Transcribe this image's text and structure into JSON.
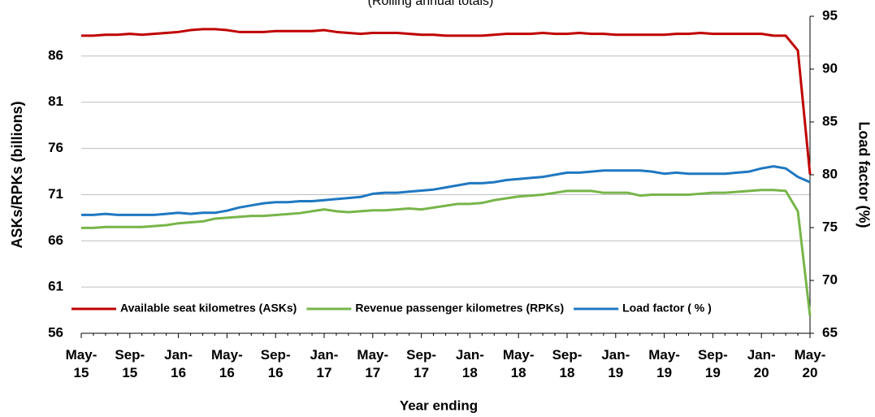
{
  "chart_data": {
    "type": "line",
    "title": "(Rolling annual totals)",
    "x_label": "Year ending",
    "y_label": "ASKs/RPKs (billions)",
    "y2_label": "Load factor (%)",
    "categories": [
      "May-15",
      null,
      null,
      null,
      "Sep-15",
      null,
      null,
      null,
      "Jan-16",
      null,
      null,
      null,
      "May-16",
      null,
      null,
      null,
      "Sep-16",
      null,
      null,
      null,
      "Jan-17",
      null,
      null,
      null,
      "May-17",
      null,
      null,
      null,
      "Sep-17",
      null,
      null,
      null,
      "Jan-18",
      null,
      null,
      null,
      "May-18",
      null,
      null,
      null,
      "Sep-18",
      null,
      null,
      null,
      "Jan-19",
      null,
      null,
      null,
      "May-19",
      null,
      null,
      null,
      "Sep-19",
      null,
      null,
      null,
      "Jan-20",
      null,
      null,
      null,
      "May-20"
    ],
    "ylim": [
      56,
      90.3
    ],
    "yticks": [
      56,
      61,
      66,
      71,
      76,
      81,
      86
    ],
    "y2lim": [
      65,
      95
    ],
    "y2ticks": [
      65,
      70,
      75,
      80,
      85,
      90,
      95
    ],
    "grid": true,
    "legend": "bottom",
    "series": [
      {
        "name": "Available seat kilometres (ASKs)",
        "color": "#c00000",
        "values": [
          88.2,
          88.2,
          88.3,
          88.3,
          88.4,
          88.3,
          88.4,
          88.5,
          88.6,
          88.8,
          88.9,
          88.9,
          88.8,
          88.6,
          88.6,
          88.6,
          88.7,
          88.7,
          88.7,
          88.7,
          88.8,
          88.6,
          88.5,
          88.4,
          88.5,
          88.5,
          88.5,
          88.4,
          88.3,
          88.3,
          88.2,
          88.2,
          88.2,
          88.2,
          88.3,
          88.4,
          88.4,
          88.4,
          88.5,
          88.4,
          88.4,
          88.5,
          88.4,
          88.4,
          88.3,
          88.3,
          88.3,
          88.3,
          88.3,
          88.4,
          88.4,
          88.5,
          88.4,
          88.4,
          88.4,
          88.4,
          88.4,
          88.2,
          88.2,
          86.6,
          73.2
        ]
      },
      {
        "name": "Revenue passenger kilometres (RPKs)",
        "color": "#77b54a",
        "values": [
          67.4,
          67.4,
          67.5,
          67.5,
          67.5,
          67.5,
          67.6,
          67.7,
          67.9,
          68.0,
          68.1,
          68.4,
          68.5,
          68.6,
          68.7,
          68.7,
          68.8,
          68.9,
          69.0,
          69.2,
          69.4,
          69.2,
          69.1,
          69.2,
          69.3,
          69.3,
          69.4,
          69.5,
          69.4,
          69.6,
          69.8,
          70.0,
          70.0,
          70.1,
          70.4,
          70.6,
          70.8,
          70.9,
          71.0,
          71.2,
          71.4,
          71.4,
          71.4,
          71.2,
          71.2,
          71.2,
          70.9,
          71.0,
          71.0,
          71.0,
          71.0,
          71.1,
          71.2,
          71.2,
          71.3,
          71.4,
          71.5,
          71.5,
          71.4,
          69.2,
          57.9
        ]
      },
      {
        "name": "Load factor ( % )",
        "color": "#1f78c1",
        "axis": "y2",
        "values": [
          76.2,
          76.2,
          76.3,
          76.2,
          76.2,
          76.2,
          76.2,
          76.3,
          76.4,
          76.3,
          76.4,
          76.4,
          76.6,
          76.9,
          77.1,
          77.3,
          77.4,
          77.4,
          77.5,
          77.5,
          77.6,
          77.7,
          77.8,
          77.9,
          78.2,
          78.3,
          78.3,
          78.4,
          78.5,
          78.6,
          78.8,
          79.0,
          79.2,
          79.2,
          79.3,
          79.5,
          79.6,
          79.7,
          79.8,
          80.0,
          80.2,
          80.2,
          80.3,
          80.4,
          80.4,
          80.4,
          80.4,
          80.3,
          80.1,
          80.2,
          80.1,
          80.1,
          80.1,
          80.1,
          80.2,
          80.3,
          80.6,
          80.8,
          80.6,
          79.8,
          79.3
        ]
      }
    ]
  }
}
